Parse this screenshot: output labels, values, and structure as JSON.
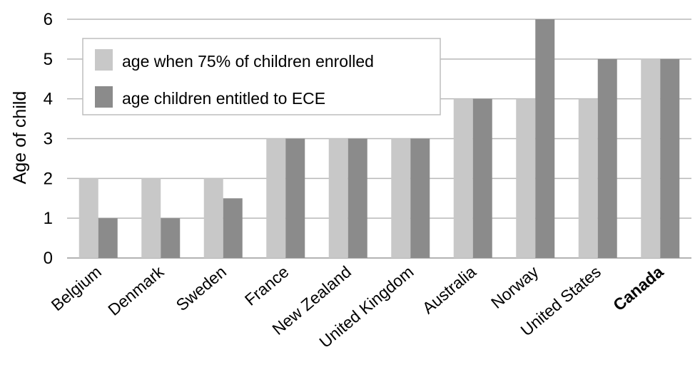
{
  "chart_data": {
    "type": "bar",
    "categories": [
      "Belgium",
      "Denmark",
      "Sweden",
      "France",
      "New Zealand",
      "United Kingdom",
      "Australia",
      "Norway",
      "United States",
      "Canada"
    ],
    "highlight_category": "Canada",
    "series": [
      {
        "name": "age when 75% of children enrolled",
        "color": "#c8c8c8",
        "values": [
          2,
          2,
          2,
          3,
          3,
          3,
          4,
          4,
          4,
          5
        ]
      },
      {
        "name": "age children entitled to ECE",
        "color": "#8b8b8b",
        "values": [
          1,
          1,
          1.5,
          3,
          3,
          3,
          4,
          6,
          5,
          5
        ]
      }
    ],
    "ylabel": "Age of child",
    "xlabel": "",
    "ylim": [
      0,
      6
    ],
    "yticks": [
      "0",
      "1",
      "2",
      "3",
      "4",
      "5",
      "6"
    ],
    "grid": true,
    "legend_position": "top-left"
  }
}
